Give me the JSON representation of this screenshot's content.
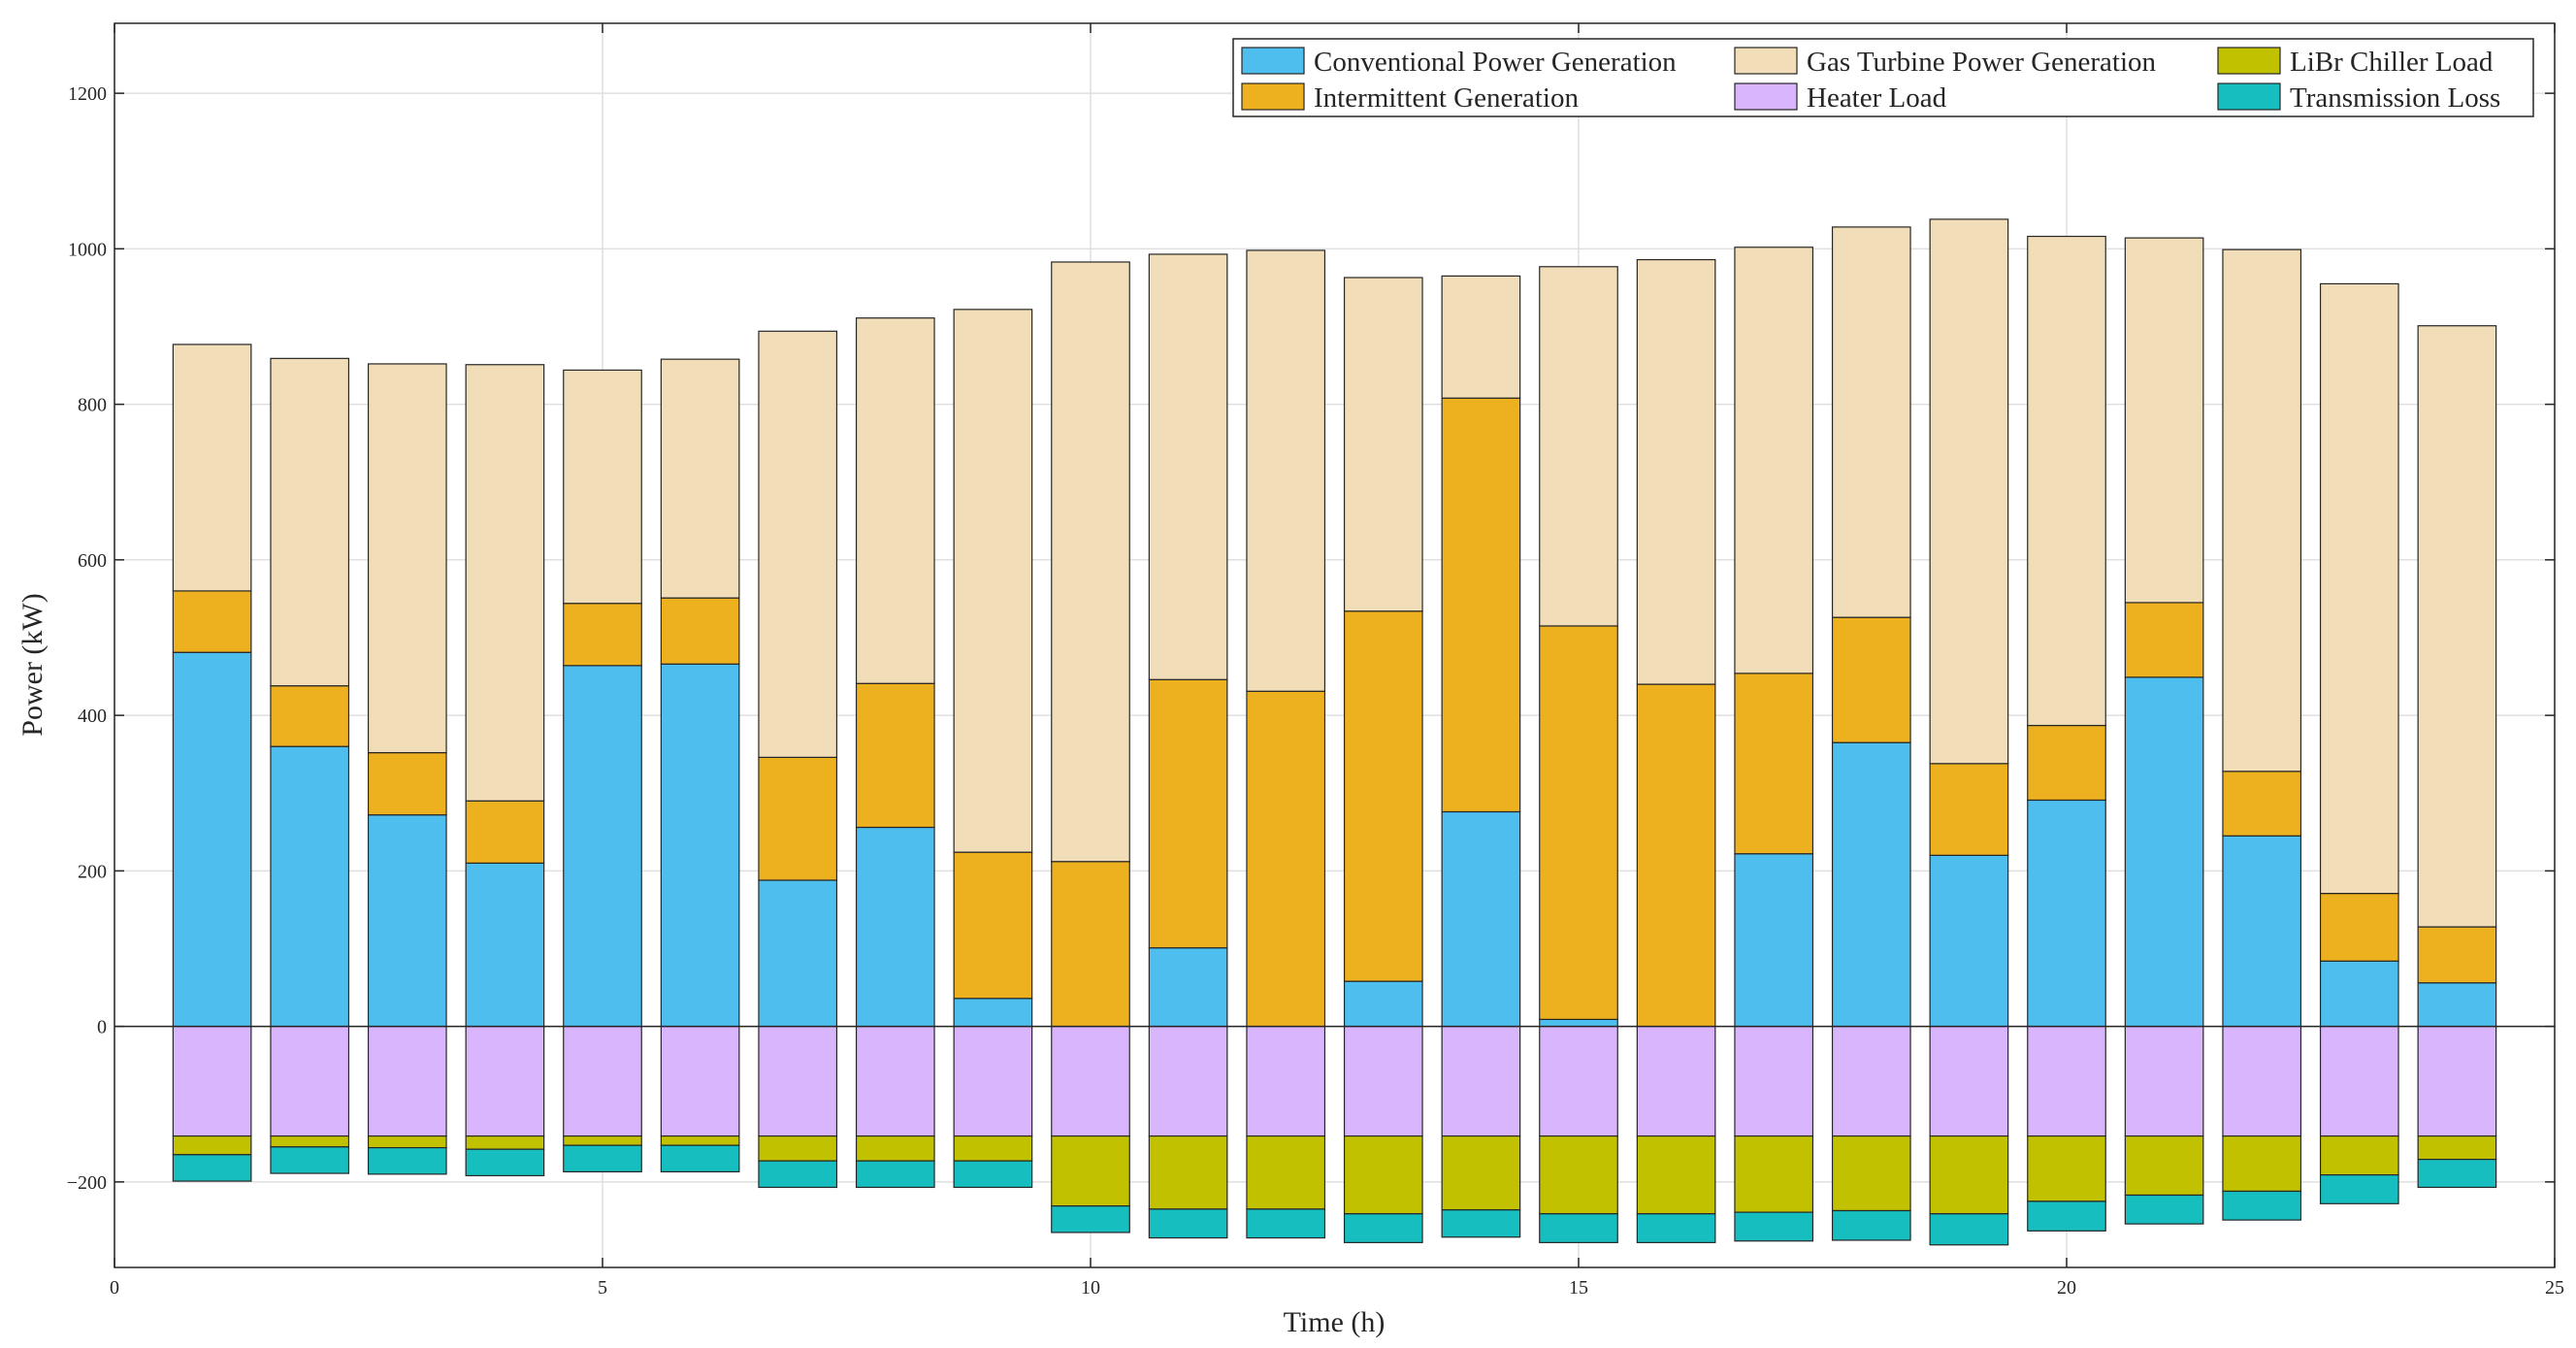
{
  "chart_data": {
    "type": "bar",
    "stacked": true,
    "xlabel": "Time (h)",
    "ylabel": "Power (kW)",
    "xlim": [
      0,
      25
    ],
    "ylim": [
      -310,
      1290
    ],
    "xticks": [
      0,
      5,
      10,
      15,
      20,
      25
    ],
    "yticks": [
      -200,
      0,
      200,
      400,
      600,
      800,
      1000,
      1200
    ],
    "grid": true,
    "legend_position": "top-right",
    "categories": [
      1,
      2,
      3,
      4,
      5,
      6,
      7,
      8,
      9,
      10,
      11,
      12,
      13,
      14,
      15,
      16,
      17,
      18,
      19,
      20,
      21,
      22,
      23,
      24
    ],
    "positive_series": [
      {
        "name": "Conventional Power Generation",
        "color": "#4DBEEE",
        "values": [
          481,
          360,
          272,
          210,
          464,
          466,
          188,
          256,
          36,
          0,
          101,
          0,
          58,
          276,
          9,
          0,
          222,
          365,
          220,
          291,
          449,
          245,
          84,
          56
        ]
      },
      {
        "name": "Intermittent Generation",
        "color": "#EDB120",
        "values": [
          79,
          78,
          80,
          80,
          80,
          85,
          158,
          185,
          188,
          212,
          345,
          431,
          476,
          532,
          506,
          440,
          232,
          161,
          118,
          96,
          96,
          83,
          87,
          72
        ]
      },
      {
        "name": "Gas Turbine Power Generation",
        "color": "#F1DEB8",
        "values": [
          317,
          421,
          500,
          561,
          300,
          307,
          548,
          470,
          698,
          771,
          547,
          567,
          429,
          157,
          462,
          546,
          548,
          502,
          700,
          629,
          469,
          671,
          784,
          773
        ]
      }
    ],
    "negative_series": [
      {
        "name": "Heater Load",
        "color": "#D8B5FC",
        "values": [
          -141,
          -141,
          -141,
          -141,
          -141,
          -141,
          -141,
          -141,
          -141,
          -141,
          -141,
          -141,
          -141,
          -141,
          -141,
          -141,
          -141,
          -141,
          -141,
          -141,
          -141,
          -141,
          -141,
          -141
        ]
      },
      {
        "name": "LiBr Chiller Load",
        "color": "#C1C100",
        "values": [
          -24,
          -14,
          -15,
          -17,
          -12,
          -12,
          -32,
          -32,
          -32,
          -90,
          -94,
          -94,
          -100,
          -95,
          -100,
          -100,
          -98,
          -96,
          -100,
          -84,
          -76,
          -71,
          -50,
          -30
        ]
      },
      {
        "name": "Transmission Loss",
        "color": "#17BEBF",
        "values": [
          -34,
          -34,
          -34,
          -34,
          -34,
          -34,
          -34,
          -34,
          -34,
          -34,
          -37,
          -37,
          -37,
          -35,
          -37,
          -37,
          -37,
          -38,
          -40,
          -38,
          -37,
          -37,
          -37,
          -36
        ]
      }
    ],
    "legend_order": [
      "Conventional Power Generation",
      "Gas Turbine Power Generation",
      "LiBr Chiller Load",
      "Intermittent Generation",
      "Heater Load",
      "Transmission Loss"
    ]
  }
}
